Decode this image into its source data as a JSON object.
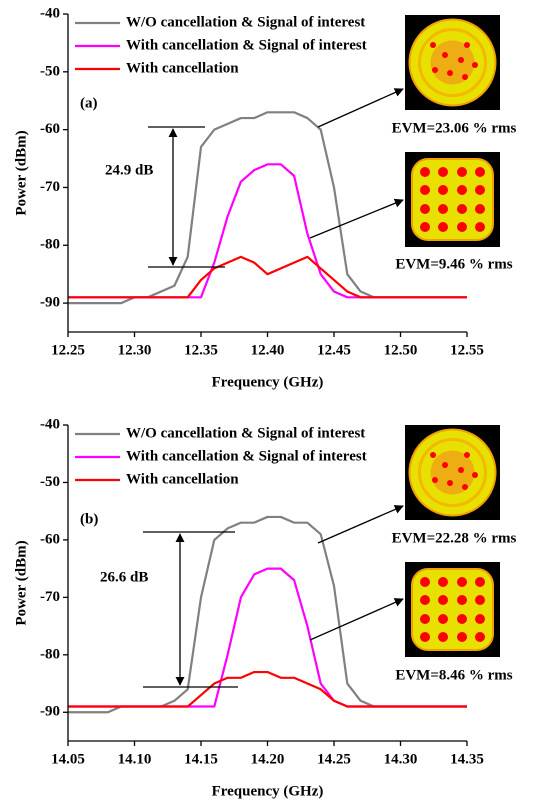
{
  "chart_data": [
    {
      "type": "line",
      "panel_label": "(a)",
      "x_label": "Frequency (GHz)",
      "y_label": "Power (dBm)",
      "annotations": [
        "24.9 dB",
        "EVM=23.06 % rms",
        "EVM=9.46 % rms"
      ],
      "x": [
        12.25,
        12.26,
        12.27,
        12.28,
        12.29,
        12.3,
        12.31,
        12.32,
        12.33,
        12.34,
        12.35,
        12.36,
        12.37,
        12.38,
        12.39,
        12.4,
        12.41,
        12.42,
        12.43,
        12.44,
        12.45,
        12.46,
        12.47,
        12.48,
        12.49,
        12.5,
        12.51,
        12.52,
        12.53,
        12.54,
        12.55
      ],
      "series": [
        {
          "name": "W/O cancellation & Signal of interest",
          "color": "#808080",
          "values": [
            -90,
            -90,
            -90,
            -90,
            -90,
            -89,
            -89,
            -88,
            -87,
            -82,
            -63,
            -60,
            -59,
            -58,
            -58,
            -57,
            -57,
            -57,
            -58,
            -60,
            -70,
            -85,
            -88,
            -89,
            -89,
            -89,
            -89,
            -89,
            -89,
            -89,
            -89
          ]
        },
        {
          "name": "With cancellation & Signal of interest",
          "color": "#ff00ff",
          "values": [
            -89,
            -89,
            -89,
            -89,
            -89,
            -89,
            -89,
            -89,
            -89,
            -89,
            -89,
            -83,
            -75,
            -69,
            -67,
            -66,
            -66,
            -68,
            -78,
            -85,
            -88,
            -89,
            -89,
            -89,
            -89,
            -89,
            -89,
            -89,
            -89,
            -89,
            -89
          ]
        },
        {
          "name": "With cancellation",
          "color": "#ff0000",
          "values": [
            -89,
            -89,
            -89,
            -89,
            -89,
            -89,
            -89,
            -89,
            -89,
            -89,
            -86,
            -84,
            -83,
            -82,
            -83,
            -85,
            -84,
            -83,
            -82,
            -84,
            -86,
            -88,
            -89,
            -89,
            -89,
            -89,
            -89,
            -89,
            -89,
            -89,
            -89
          ]
        }
      ],
      "xlim": [
        12.25,
        12.55
      ],
      "xticks": [
        12.25,
        {
          "value": 12.3,
          "label": "12.30"
        },
        12.35,
        {
          "value": 12.4,
          "label": "12.40"
        },
        12.45,
        {
          "value": 12.5,
          "label": "12.50"
        },
        12.55
      ],
      "ylim": [
        -95,
        -40
      ],
      "yticks": [
        -40,
        -50,
        -60,
        -70,
        -80,
        -90
      ],
      "grid": false
    },
    {
      "type": "line",
      "panel_label": "(b)",
      "x_label": "Frequency (GHz)",
      "y_label": "Power (dBm)",
      "annotations": [
        "26.6 dB",
        "EVM=22.28 % rms",
        "EVM=8.46 % rms"
      ],
      "x": [
        14.05,
        14.06,
        14.07,
        14.08,
        14.09,
        14.1,
        14.11,
        14.12,
        14.13,
        14.14,
        14.15,
        14.16,
        14.17,
        14.18,
        14.19,
        14.2,
        14.21,
        14.22,
        14.23,
        14.24,
        14.25,
        14.26,
        14.27,
        14.28,
        14.29,
        14.3,
        14.31,
        14.32,
        14.33,
        14.34,
        14.35
      ],
      "series": [
        {
          "name": "W/O cancellation & Signal of interest",
          "color": "#808080",
          "values": [
            -90,
            -90,
            -90,
            -90,
            -89,
            -89,
            -89,
            -89,
            -88,
            -86,
            -70,
            -60,
            -58,
            -57,
            -57,
            -56,
            -56,
            -57,
            -57,
            -59,
            -68,
            -85,
            -88,
            -89,
            -89,
            -89,
            -89,
            -89,
            -89,
            -89,
            -89
          ]
        },
        {
          "name": "With cancellation & Signal of interest",
          "color": "#ff00ff",
          "values": [
            -89,
            -89,
            -89,
            -89,
            -89,
            -89,
            -89,
            -89,
            -89,
            -89,
            -89,
            -89,
            -80,
            -70,
            -66,
            -65,
            -65,
            -67,
            -75,
            -85,
            -88,
            -89,
            -89,
            -89,
            -89,
            -89,
            -89,
            -89,
            -89,
            -89,
            -89
          ]
        },
        {
          "name": "With cancellation",
          "color": "#ff0000",
          "values": [
            -89,
            -89,
            -89,
            -89,
            -89,
            -89,
            -89,
            -89,
            -89,
            -89,
            -87,
            -85,
            -84,
            -84,
            -83,
            -83,
            -84,
            -84,
            -85,
            -86,
            -88,
            -89,
            -89,
            -89,
            -89,
            -89,
            -89,
            -89,
            -89,
            -89,
            -89
          ]
        }
      ],
      "xlim": [
        14.05,
        14.35
      ],
      "xticks": [
        14.05,
        {
          "value": 14.1,
          "label": "14.10"
        },
        14.15,
        {
          "value": 14.2,
          "label": "14.20"
        },
        14.25,
        {
          "value": 14.3,
          "label": "14.30"
        },
        14.35
      ],
      "ylim": [
        -95,
        -40
      ],
      "yticks": [
        -40,
        -50,
        -60,
        -70,
        -80,
        -90
      ],
      "grid": false
    }
  ]
}
